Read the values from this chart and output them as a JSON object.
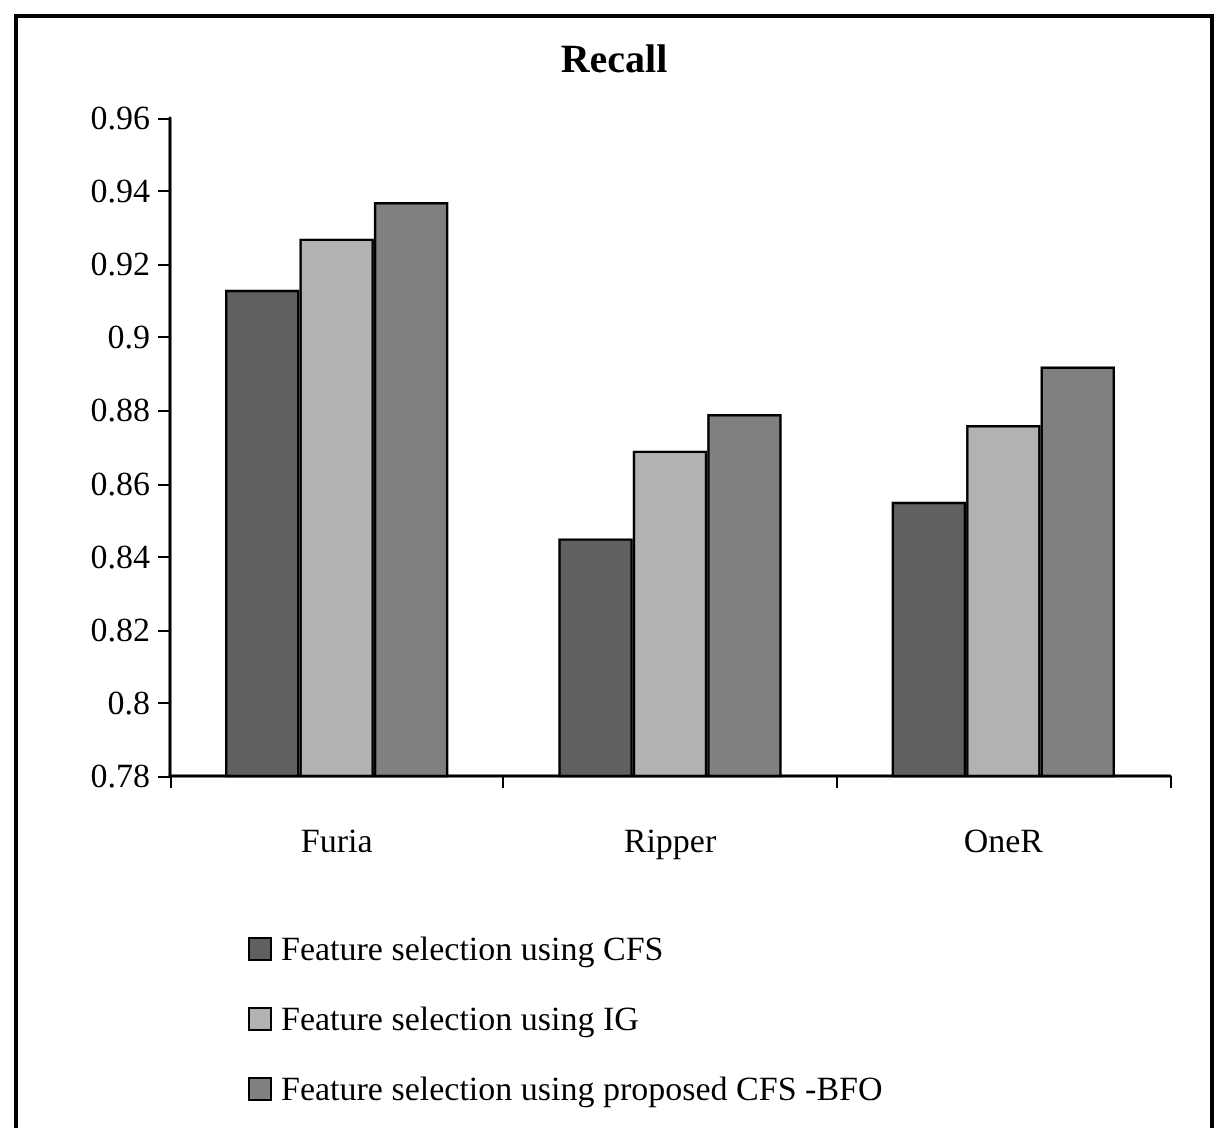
{
  "chart_data": {
    "type": "bar",
    "title": "Recall",
    "categories": [
      "Furia",
      "Ripper",
      "OneR"
    ],
    "series": [
      {
        "name": "Feature selection using CFS",
        "color": "#606060",
        "values": [
          0.913,
          0.845,
          0.855
        ]
      },
      {
        "name": "Feature selection using IG",
        "color": "#b2b2b2",
        "values": [
          0.927,
          0.869,
          0.876
        ]
      },
      {
        "name": "Feature selection using proposed CFS -BFO",
        "color": "#808080",
        "values": [
          0.937,
          0.879,
          0.892
        ]
      }
    ],
    "ylim": [
      0.78,
      0.96
    ],
    "yticks": [
      0.78,
      0.8,
      0.82,
      0.84,
      0.86,
      0.88,
      0.9,
      0.92,
      0.94,
      0.96
    ],
    "grid": false,
    "legend": "bottom"
  }
}
